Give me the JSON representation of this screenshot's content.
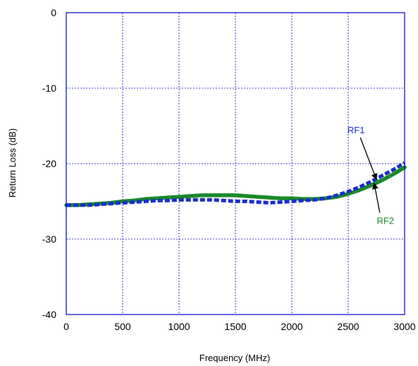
{
  "chart_data": {
    "type": "line",
    "title": "",
    "xlabel": "Frequency (MHz)",
    "ylabel": "Return Loss (dB)",
    "xlim": [
      0,
      3000
    ],
    "ylim": [
      -40,
      0
    ],
    "xticks": [
      0,
      500,
      1000,
      1500,
      2000,
      2500,
      3000
    ],
    "yticks": [
      0,
      -10,
      -20,
      -30,
      -40
    ],
    "grid": true,
    "legend": "none",
    "colors": {
      "frame": "#0000cc",
      "grid": "#0000cc",
      "rf1": "#1a2ecc",
      "rf2": "#1a8a2a",
      "arrow": "#000000"
    },
    "series": [
      {
        "name": "RF1",
        "style": "dashed",
        "x": [
          0,
          100,
          200,
          300,
          400,
          500,
          600,
          700,
          800,
          900,
          1000,
          1100,
          1200,
          1300,
          1400,
          1500,
          1600,
          1700,
          1800,
          1900,
          2000,
          2100,
          2200,
          2300,
          2400,
          2500,
          2600,
          2700,
          2800,
          2900,
          3000
        ],
        "y": [
          -25.5,
          -25.5,
          -25.5,
          -25.4,
          -25.3,
          -25.2,
          -25.1,
          -25.0,
          -24.9,
          -24.9,
          -24.8,
          -24.8,
          -24.8,
          -24.8,
          -24.9,
          -25.0,
          -25.0,
          -25.1,
          -25.2,
          -25.1,
          -25.0,
          -24.9,
          -24.8,
          -24.6,
          -24.2,
          -23.7,
          -23.1,
          -22.4,
          -21.6,
          -20.8,
          -19.9
        ]
      },
      {
        "name": "RF2",
        "style": "solid",
        "x": [
          0,
          100,
          200,
          300,
          400,
          500,
          600,
          700,
          800,
          900,
          1000,
          1100,
          1200,
          1300,
          1400,
          1500,
          1600,
          1700,
          1800,
          1900,
          2000,
          2100,
          2200,
          2300,
          2400,
          2500,
          2600,
          2700,
          2800,
          2900,
          3000
        ],
        "y": [
          -25.5,
          -25.5,
          -25.4,
          -25.3,
          -25.2,
          -25.0,
          -24.9,
          -24.7,
          -24.6,
          -24.5,
          -24.4,
          -24.3,
          -24.2,
          -24.2,
          -24.2,
          -24.2,
          -24.3,
          -24.4,
          -24.5,
          -24.6,
          -24.6,
          -24.7,
          -24.7,
          -24.6,
          -24.4,
          -24.0,
          -23.5,
          -22.9,
          -22.2,
          -21.4,
          -20.5
        ]
      }
    ],
    "annotations": [
      {
        "text": "RF1",
        "label_x": 2570,
        "label_y": -16.0,
        "point_x": 2750,
        "point_y": -22.1
      },
      {
        "text": "RF2",
        "label_x": 2830,
        "label_y": -28.0,
        "point_x": 2730,
        "point_y": -22.6
      }
    ]
  }
}
